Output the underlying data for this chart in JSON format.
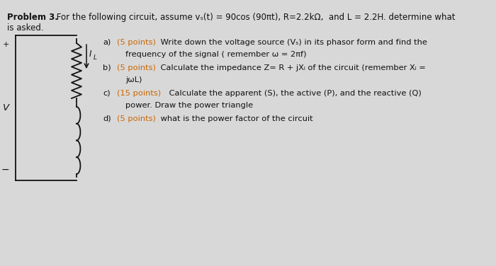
{
  "background_color": "#d8d8d8",
  "title_bold": "Problem 3.",
  "title_normal": " For the following circuit, assume vₛ(t) = 90cos (90πt), R=2.2kΩ,  and L = 2.2H. determine what",
  "title_line2": "is asked.",
  "circuit_plus": "+",
  "circuit_minus": "−",
  "circuit_V": "V",
  "circuit_IL": "I",
  "part_a_label": "a)",
  "part_a_points": "(5 points)",
  "part_a_text": " Write down the voltage source (Vₛ) in its phasor form and find the",
  "part_a_line2": "frequency of the signal ( remember ω = 2πf)",
  "part_b_label": "b)",
  "part_b_points": "(5 points)",
  "part_b_text": " Calculate the impedance Z= R + jXₗ of the circuit (remember Xₗ =",
  "part_b_line2": "jωL)",
  "part_c_label": "c)",
  "part_c_points": "(15 points)",
  "part_c_text": " Calculate the apparent (S), the active (P), and the reactive (Q)",
  "part_c_line2": "power. Draw the power triangle",
  "part_d_label": "d)",
  "part_d_points": "(5 points)",
  "part_d_text": " what is the power factor of the circuit",
  "orange_color": "#cc6600",
  "text_color": "#111111",
  "font_size_title": 8.5,
  "font_size_body": 8.2,
  "fig_width": 7.0,
  "fig_height": 3.76,
  "dpi": 100
}
